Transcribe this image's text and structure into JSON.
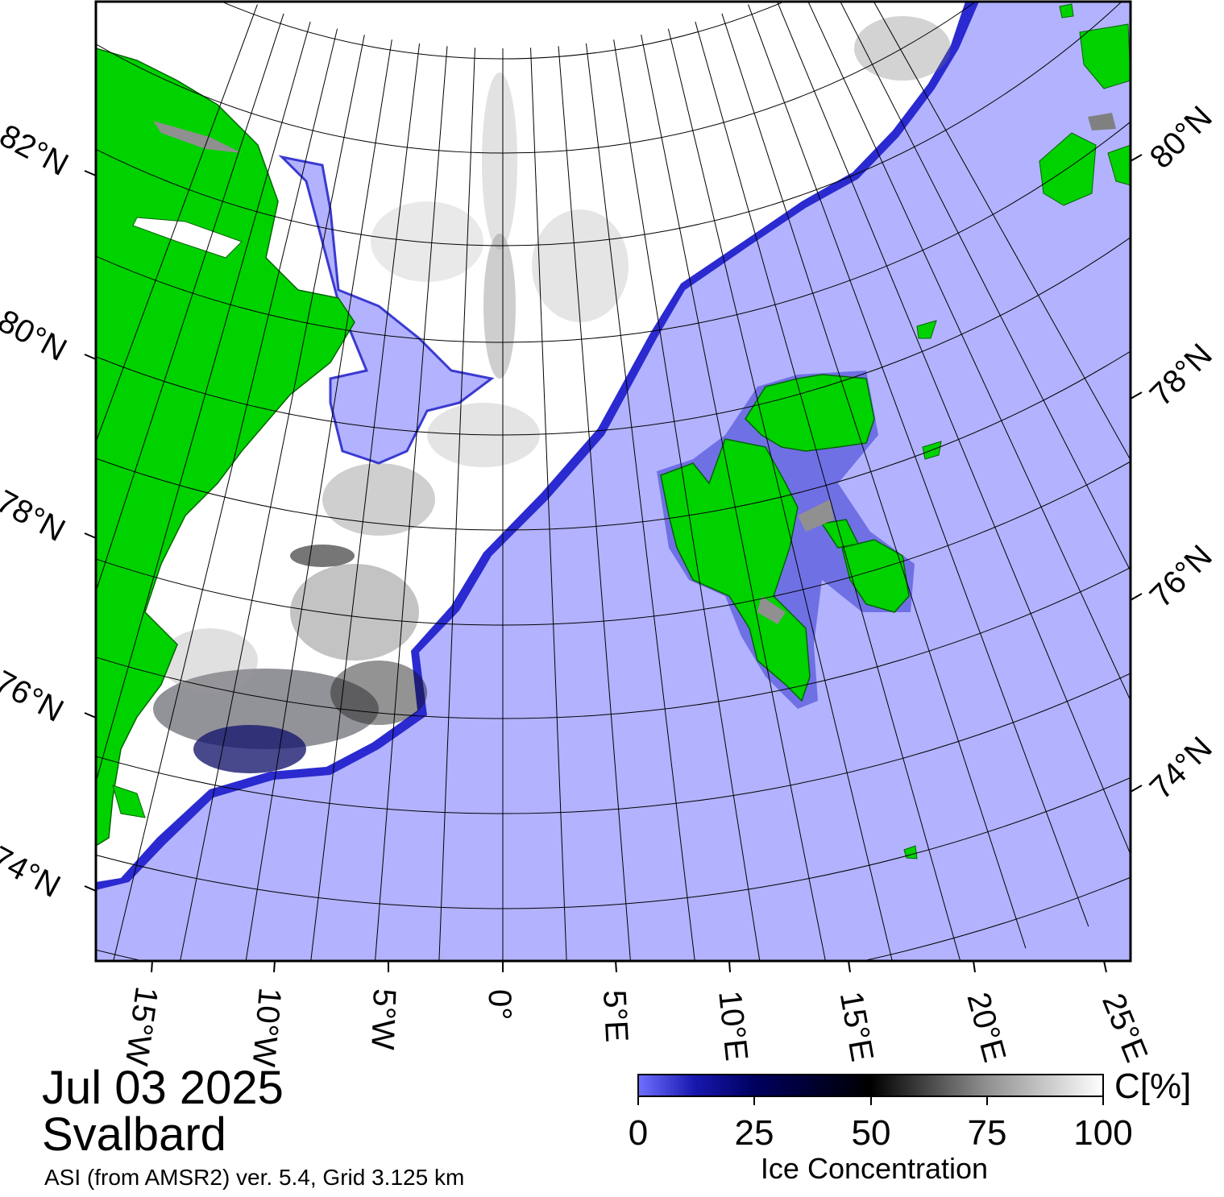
{
  "map": {
    "date": "Jul 03 2025",
    "region": "Svalbard",
    "source": "ASI (from AMSR2) ver. 5.4,  Grid 3.125 km",
    "projection": "polar stereographic",
    "colors": {
      "open_water": "#b2b2ff",
      "land": "#00d200",
      "ice_full": "#ffffff",
      "ice_mid": "#000000",
      "ice_low": "#7070ff",
      "graticule": "#000000"
    },
    "left_lat_labels": [
      "82°N",
      "80°N",
      "78°N",
      "76°N",
      "74°N"
    ],
    "right_lat_labels": [
      "80°N",
      "78°N",
      "76°N",
      "74°N"
    ],
    "lon_labels": [
      "15°W",
      "10°W",
      "5°W",
      "0°",
      "5°E",
      "10°E",
      "15°E",
      "20°E",
      "25°E"
    ]
  },
  "colorbar": {
    "ticks": [
      "0",
      "25",
      "50",
      "75",
      "100"
    ],
    "unit": "C[%]",
    "title": "Ice Concentration",
    "stops": [
      {
        "value": 0,
        "color": "#7070ff"
      },
      {
        "value": 12,
        "color": "#1818b0"
      },
      {
        "value": 25,
        "color": "#000060"
      },
      {
        "value": 50,
        "color": "#000000"
      },
      {
        "value": 75,
        "color": "#909090"
      },
      {
        "value": 100,
        "color": "#ffffff"
      }
    ]
  }
}
